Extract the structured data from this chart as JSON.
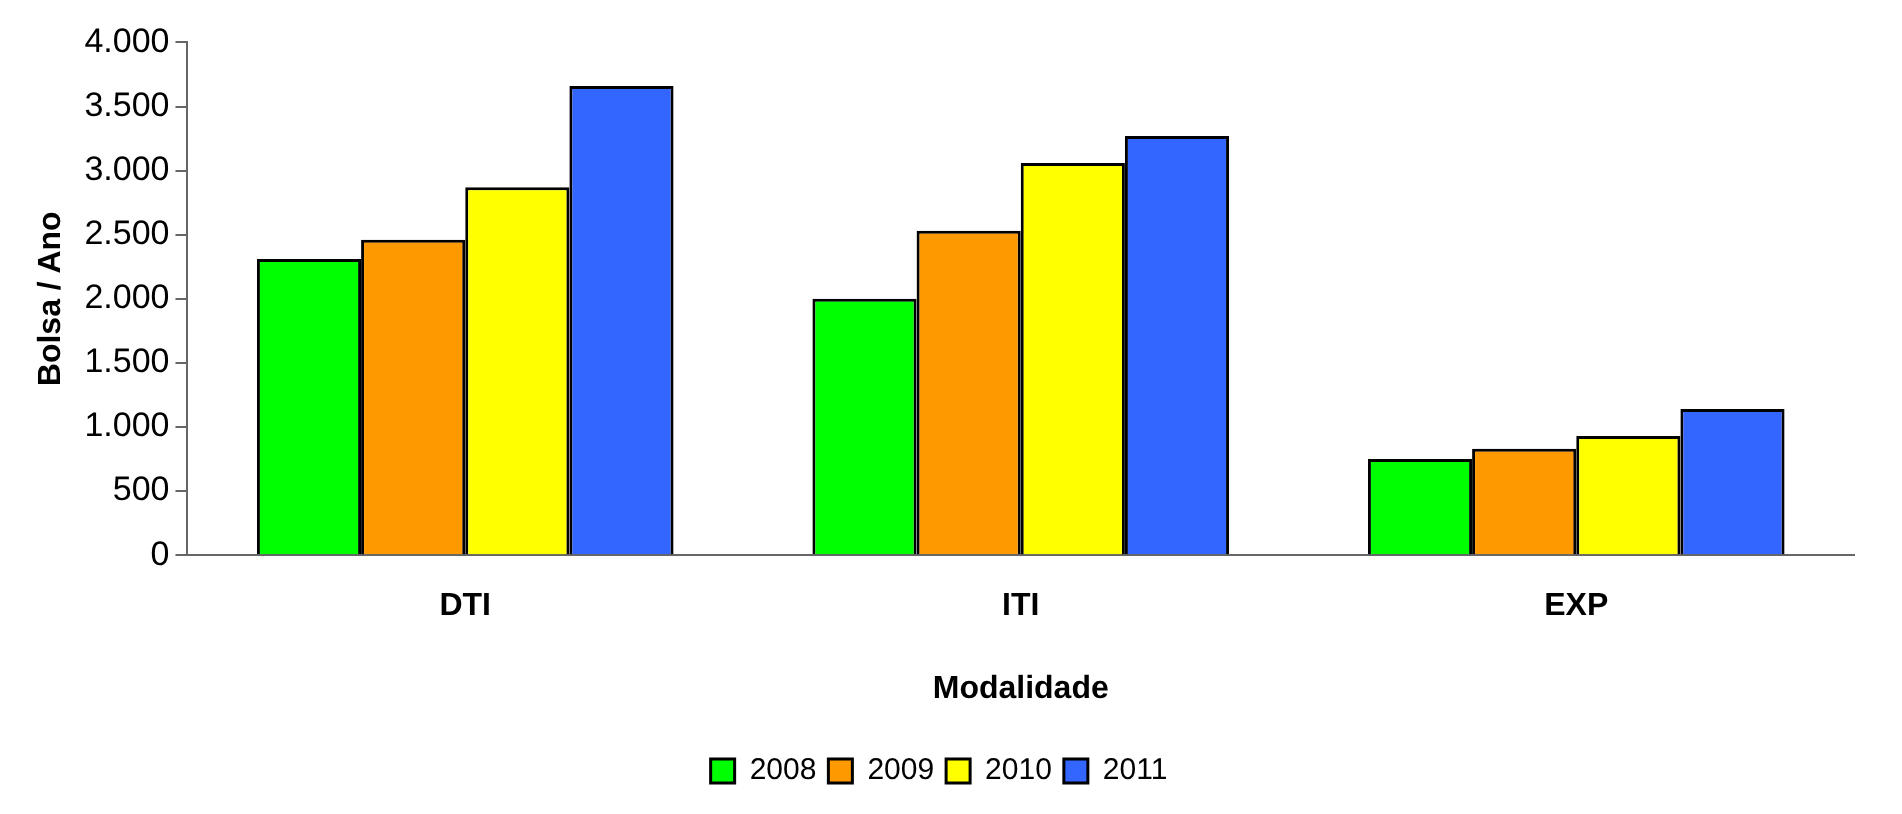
{
  "chart_data": {
    "type": "bar",
    "xlabel": "Modalidade",
    "ylabel": "Bolsa / Ano",
    "categories": [
      "DTI",
      "ITI",
      "EXP"
    ],
    "series": [
      {
        "name": "2008",
        "color": "#00ff00",
        "values": [
          2310,
          2000,
          750
        ]
      },
      {
        "name": "2009",
        "color": "#ff9900",
        "values": [
          2460,
          2530,
          830
        ]
      },
      {
        "name": "2010",
        "color": "#ffff00",
        "values": [
          2870,
          3060,
          930
        ]
      },
      {
        "name": "2011",
        "color": "#3366ff",
        "values": [
          3660,
          3270,
          1140
        ]
      }
    ],
    "ylim": [
      0,
      4000
    ],
    "yticks": [
      0,
      500,
      {
        "value": 1000,
        "label": "1.000"
      },
      {
        "value": 1500,
        "label": "1.500"
      },
      {
        "value": 2000,
        "label": "2.000"
      },
      {
        "value": 2500,
        "label": "2.500"
      },
      {
        "value": 3000,
        "label": "3.000"
      },
      {
        "value": 3500,
        "label": "3.500"
      },
      {
        "value": 4000,
        "label": "4.000"
      }
    ],
    "grid": false,
    "legend": "bottom"
  }
}
